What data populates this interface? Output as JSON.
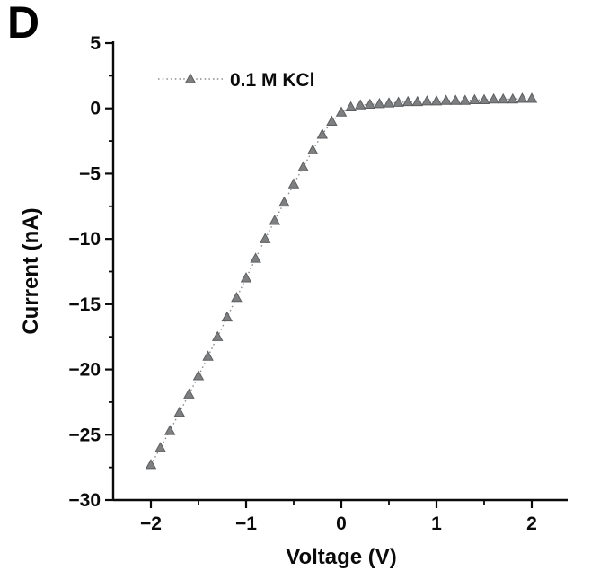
{
  "panel_label": "D",
  "colors": {
    "marker_fill": "#7d7f81",
    "marker_edge": "#5c5e60",
    "line": "#8a8c8e",
    "axis": "#0a0a0a",
    "text": "#0a0a0a",
    "background": "#ffffff"
  },
  "chart_data": {
    "type": "line",
    "title": "",
    "xlabel": "Voltage (V)",
    "ylabel": "Current (nA)",
    "xlim": [
      -2.4,
      2.4
    ],
    "ylim": [
      -30,
      5
    ],
    "x_ticks": [
      -2,
      -1,
      0,
      1,
      2
    ],
    "x_minor_ticks": [
      -1.5,
      -0.5,
      0.5,
      1.5
    ],
    "y_ticks": [
      5,
      0,
      -5,
      -10,
      -15,
      -20,
      -25,
      -30
    ],
    "y_minor_ticks": [
      2.5,
      -2.5,
      -7.5,
      -12.5,
      -17.5,
      -22.5,
      -27.5
    ],
    "grid": false,
    "legend_position": "upper-left-inside",
    "series": [
      {
        "name": "0.1 M KCl",
        "marker": "triangle-up",
        "linestyle": "dotted",
        "x": [
          -2.0,
          -1.9,
          -1.8,
          -1.7,
          -1.6,
          -1.5,
          -1.4,
          -1.3,
          -1.2,
          -1.1,
          -1.0,
          -0.9,
          -0.8,
          -0.7,
          -0.6,
          -0.5,
          -0.4,
          -0.3,
          -0.2,
          -0.1,
          0.0,
          0.1,
          0.2,
          0.3,
          0.4,
          0.5,
          0.6,
          0.7,
          0.8,
          0.9,
          1.0,
          1.1,
          1.2,
          1.3,
          1.4,
          1.5,
          1.6,
          1.7,
          1.8,
          1.9,
          2.0
        ],
        "y": [
          -27.3,
          -26.0,
          -24.7,
          -23.3,
          -21.9,
          -20.5,
          -19.0,
          -17.5,
          -16.0,
          -14.5,
          -13.0,
          -11.5,
          -10.0,
          -8.6,
          -7.2,
          -5.8,
          -4.5,
          -3.2,
          -2.0,
          -1.0,
          -0.3,
          0.1,
          0.25,
          0.3,
          0.35,
          0.4,
          0.45,
          0.5,
          0.5,
          0.55,
          0.55,
          0.6,
          0.6,
          0.6,
          0.65,
          0.65,
          0.7,
          0.7,
          0.7,
          0.75,
          0.75
        ]
      }
    ]
  }
}
